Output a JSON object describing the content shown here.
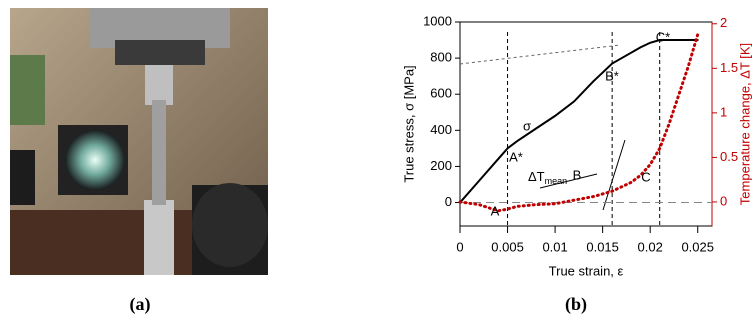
{
  "chart_data": {
    "type": "line",
    "captions": [
      "(a)",
      "(b)"
    ],
    "xlabel": "True strain, ε",
    "ylabel": "True stress, σ  [MPa]",
    "y2label": "Temperature change, ΔT  [K]",
    "xlim": [
      0,
      0.0265
    ],
    "xticks": [
      0,
      0.005,
      0.01,
      0.015,
      0.02,
      0.025
    ],
    "ylim": [
      -130,
      1000
    ],
    "yticks": [
      0,
      200,
      400,
      600,
      800,
      1000
    ],
    "y2lim": [
      -0.27,
      2.02
    ],
    "y2ticks": [
      0,
      0.5,
      1,
      1.5,
      2
    ],
    "x": [
      0,
      0.002,
      0.004,
      0.005,
      0.006,
      0.008,
      0.01,
      0.012,
      0.014,
      0.016,
      0.018,
      0.019,
      0.02,
      0.021,
      0.022,
      0.023,
      0.024,
      0.025
    ],
    "series": [
      {
        "name": "σ",
        "color": "#000000",
        "style": "solid",
        "values": [
          0,
          120,
          240,
          300,
          340,
          410,
          480,
          560,
          670,
          770,
          830,
          860,
          885,
          900,
          900,
          900,
          900,
          900
        ]
      },
      {
        "name": "ΔT",
        "color": "#c00000",
        "style": "dotted",
        "axis": "y2",
        "values": [
          0,
          -0.03,
          -0.1,
          -0.08,
          -0.05,
          -0.03,
          -0.02,
          0.02,
          0.06,
          0.12,
          0.22,
          0.3,
          0.42,
          0.6,
          0.88,
          1.2,
          1.52,
          1.88
        ]
      }
    ],
    "reference_x": [
      0.005,
      0.016,
      0.021
    ],
    "annotations": [
      "σ",
      "A*",
      "B*",
      "C*",
      "A",
      "B",
      "C"
    ],
    "delta_t_annotation": [
      "ΔT",
      "mean"
    ]
  }
}
